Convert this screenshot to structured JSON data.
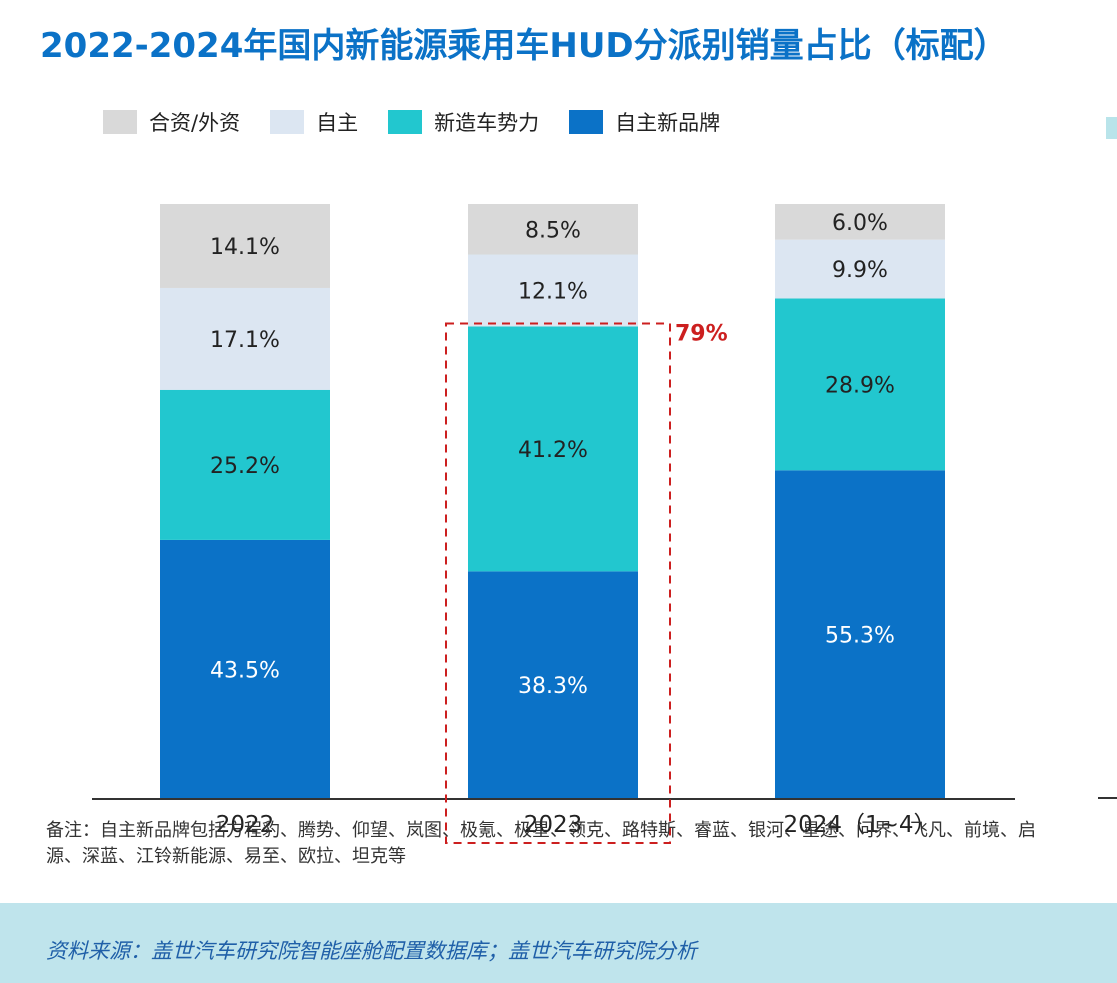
{
  "title": "2022-2024年国内新能源乘用车HUD分派别销量占比（标配）",
  "legend": [
    {
      "label": "合资/外资",
      "color": "#d9d9d9"
    },
    {
      "label": "自主",
      "color": "#dce6f2"
    },
    {
      "label": "新造车势力",
      "color": "#22c7cf"
    },
    {
      "label": "自主新品牌",
      "color": "#0b72c7"
    }
  ],
  "chart_data": {
    "type": "bar",
    "stacked": true,
    "categories": [
      "2022",
      "2023",
      "2024（1~4）"
    ],
    "series": [
      {
        "name": "自主新品牌",
        "values": [
          43.5,
          38.3,
          55.3
        ],
        "labels": [
          "43.5%",
          "38.3%",
          "55.3%"
        ],
        "color": "#0b72c7",
        "label_color": "#ffffff"
      },
      {
        "name": "新造车势力",
        "values": [
          25.2,
          41.2,
          28.9
        ],
        "labels": [
          "25.2%",
          "41.2%",
          "28.9%"
        ],
        "color": "#22c7cf",
        "label_color": "#222222"
      },
      {
        "name": "自主",
        "values": [
          17.1,
          12.1,
          9.9
        ],
        "labels": [
          "17.1%",
          "12.1%",
          "9.9%"
        ],
        "color": "#dce6f2",
        "label_color": "#222222"
      },
      {
        "name": "合资/外资",
        "values": [
          14.1,
          8.5,
          6.0
        ],
        "labels": [
          "14.1%",
          "8.5%",
          "6.0%"
        ],
        "color": "#d9d9d9",
        "label_color": "#222222"
      }
    ],
    "ylim": [
      0,
      100
    ],
    "unit": "%",
    "highlight": {
      "category": "2023",
      "label": "79%",
      "color": "#cc1f1f"
    }
  },
  "note": "备注：自主新品牌包括方程豹、腾势、仰望、岚图、极氪、极星、领克、路特斯、睿蓝、银河、星途、问界、飞凡、前境、启源、深蓝、江铃新能源、易至、欧拉、坦克等",
  "source": "资料来源：盖世汽车研究院智能座舱配置数据库；盖世汽车研究院分析"
}
